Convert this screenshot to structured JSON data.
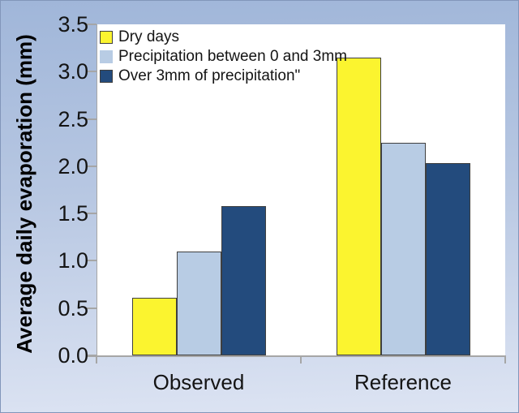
{
  "chart_data": {
    "type": "bar",
    "title": "",
    "ylabel": "Average daily evaporation (mm)",
    "xlabel": "",
    "categories": [
      "Observed",
      "Reference"
    ],
    "series": [
      {
        "name": "Dry days",
        "values": [
          0.59,
          3.13
        ],
        "color": "#fbf42f"
      },
      {
        "name": "Precipitation between 0 and 3mm",
        "values": [
          1.08,
          2.23
        ],
        "color": "#b8cce4"
      },
      {
        "name": "Over 3mm of precipitation\"",
        "values": [
          1.56,
          2.02
        ],
        "color": "#234b7d"
      }
    ],
    "ylim": [
      0,
      3.5
    ],
    "yticks": [
      "0.0",
      "0.5",
      "1.0",
      "1.5",
      "2.0",
      "2.5",
      "3.0",
      "3.5"
    ],
    "ytick_step": 0.5,
    "grid": false,
    "legend_position": "inside-top-left"
  },
  "style": {
    "background_top": "#a0b6d9",
    "background_bottom": "#dde4f3",
    "plot_background": "#ffffff",
    "axis_color": "#a6a6a6",
    "bar_border_color": "#3f3f3f",
    "text_color": "#141414",
    "legend_swatch_borders": [
      "#3f3f3f",
      "#b8cce4",
      "#3f3f3f"
    ]
  }
}
